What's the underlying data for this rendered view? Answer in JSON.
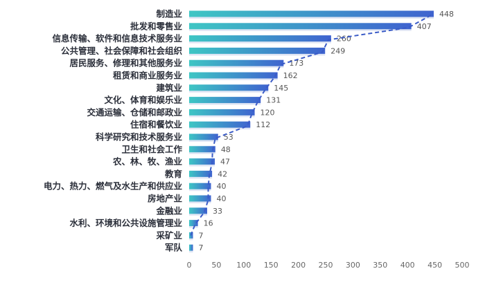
{
  "chart_data": {
    "type": "bar",
    "orientation": "horizontal",
    "categories": [
      "制造业",
      "批发和零售业",
      "信息传输、软件和信息技术服务业",
      "公共管理、社会保障和社会组织",
      "居民服务、修理和其他服务业",
      "租赁和商业服务业",
      "建筑业",
      "文化、体育和娱乐业",
      "交通运输、仓储和邮政业",
      "住宿和餐饮业",
      "科学研究和技术服务业",
      "卫生和社会工作",
      "农、林、牧、渔业",
      "教育",
      "电力、热力、燃气及水生产和供应业",
      "房地产业",
      "金融业",
      "水利、环境和公共设施管理业",
      "采矿业",
      "军队"
    ],
    "values": [
      448,
      407,
      260,
      249,
      173,
      162,
      145,
      131,
      120,
      112,
      53,
      48,
      47,
      42,
      40,
      40,
      33,
      16,
      7,
      7
    ],
    "xlim": [
      0,
      500
    ],
    "xticks": [
      0,
      50,
      100,
      150,
      200,
      250,
      300,
      350,
      400,
      450,
      500
    ],
    "grid": false,
    "data_labels": true,
    "trend_line": "dashed",
    "colors": {
      "bar_start": "#3ec6c4",
      "bar_end": "#3f63cf",
      "line": "#3a5bc7"
    }
  }
}
